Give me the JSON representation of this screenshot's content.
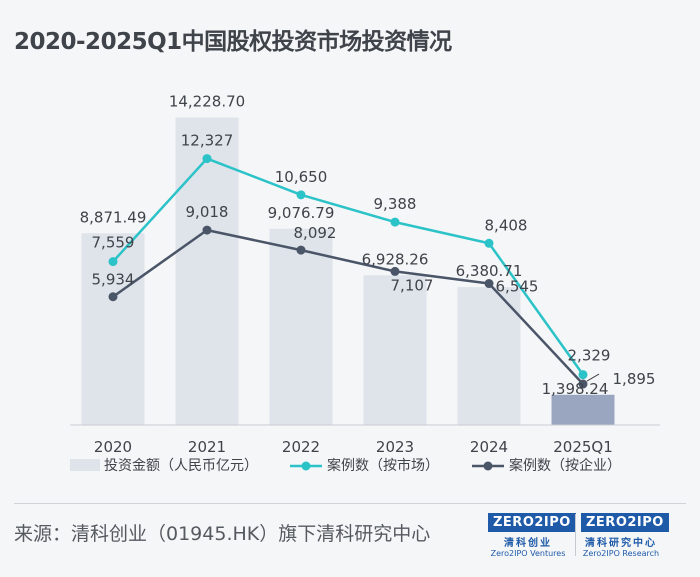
{
  "title": "2020-2025Q1中国股权投资市场投资情况",
  "chart_data": {
    "type": "bar+line",
    "categories": [
      "2020",
      "2021",
      "2022",
      "2023",
      "2024",
      "2025Q1"
    ],
    "series": [
      {
        "name": "投资金额（人民币亿元）",
        "kind": "bar",
        "values": [
          8871.49,
          14228.7,
          9076.79,
          6928.26,
          6380.71,
          1398.24
        ],
        "labels": [
          "8,871.49",
          "14,228.70",
          "9,076.79",
          "6,928.26",
          "6,380.71",
          "1,398.24"
        ],
        "colors": [
          "#dfe3ea",
          "#dfe3ea",
          "#dfe3ea",
          "#dfe3ea",
          "#dfe3ea",
          "#9aa6bf"
        ]
      },
      {
        "name": "案例数（按市场）",
        "kind": "line",
        "color": "#2bc3c8",
        "values": [
          7559,
          12327,
          10650,
          9388,
          8408,
          2329
        ],
        "labels": [
          "7,559",
          "12,327",
          "10,650",
          "9,388",
          "8,408",
          "2,329"
        ]
      },
      {
        "name": "案例数（按企业）",
        "kind": "line",
        "color": "#4a5568",
        "values": [
          5934,
          9018,
          8092,
          7107,
          6545,
          1895
        ],
        "labels": [
          "5,934",
          "9,018",
          "8,092",
          "7,107",
          "6,545",
          "1,895"
        ]
      }
    ],
    "ylim": [
      0,
      15500
    ],
    "xlabel": "",
    "ylabel": "",
    "legend": "bottom"
  },
  "footer": {
    "source": "来源：清科创业（01945.HK）旗下清科研究中心"
  },
  "logos": [
    {
      "word": "ZERO2IPO",
      "cn": "清科创业",
      "en": "Zero2IPO Ventures"
    },
    {
      "word": "ZERO2IPO",
      "cn": "清科研究中心",
      "en": "Zero2IPO Research"
    }
  ],
  "colors": {
    "bar": "#dfe3ea",
    "bar_highlight": "#9aa6bf",
    "line_market": "#2bc3c8",
    "line_enterprise": "#4a5568",
    "text": "#3f434a"
  }
}
